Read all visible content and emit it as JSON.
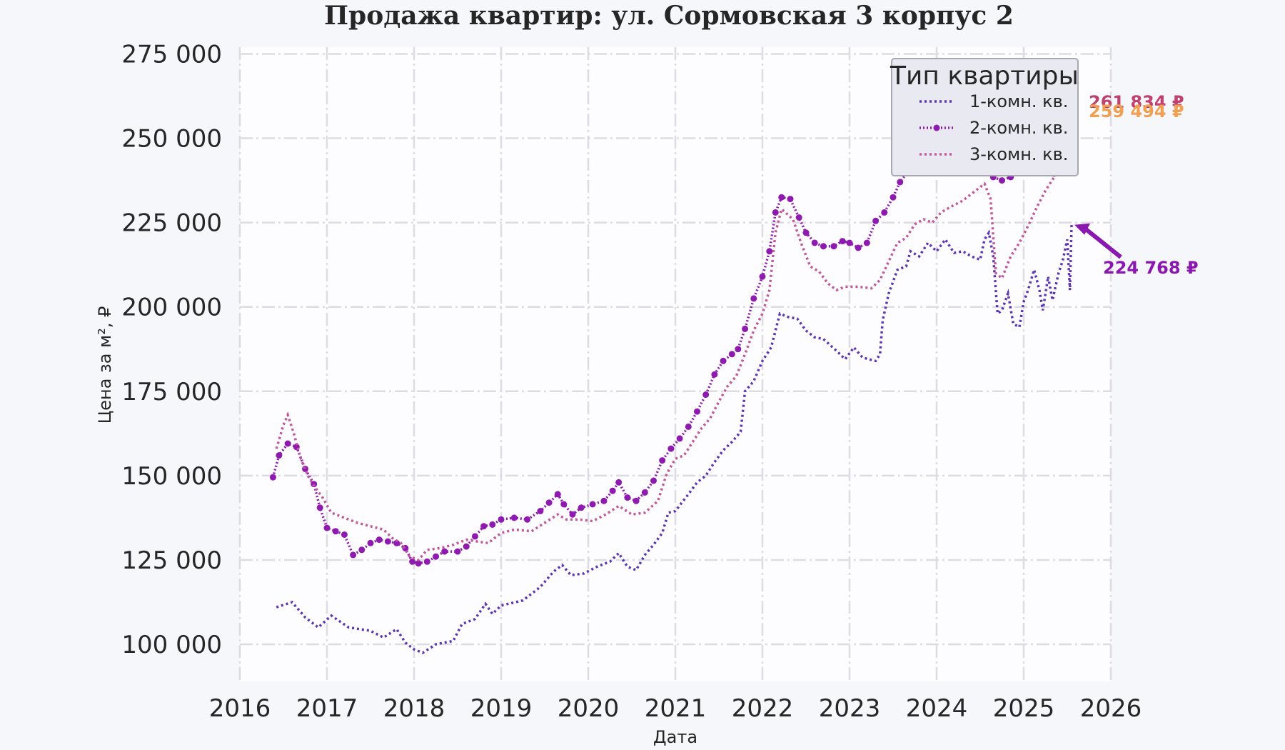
{
  "chart_data": {
    "type": "line",
    "title": "Продажа квартир: ул. Сормовская 3 корпус 2",
    "xlabel": "Дата",
    "ylabel": "Цена за м², ₽",
    "xlim": [
      2016.0,
      2026.0
    ],
    "ylim": [
      89000,
      277000
    ],
    "x_ticks": [
      "2016",
      "2017",
      "2018",
      "2019",
      "2020",
      "2021",
      "2022",
      "2023",
      "2024",
      "2025",
      "2026"
    ],
    "y_ticks": [
      {
        "value": 100000,
        "label": "100 000"
      },
      {
        "value": 125000,
        "label": "125 000"
      },
      {
        "value": 150000,
        "label": "150 000"
      },
      {
        "value": 175000,
        "label": "175 000"
      },
      {
        "value": 200000,
        "label": "200 000"
      },
      {
        "value": 225000,
        "label": "225 000"
      },
      {
        "value": 250000,
        "label": "250 000"
      },
      {
        "value": 275000,
        "label": "275 000"
      }
    ],
    "grid": true,
    "legend": {
      "title": "Тип квартиры",
      "position": "top-right"
    },
    "series": [
      {
        "name": "1-комн. кв.",
        "color": "#5e35b1",
        "style": "dotted",
        "points": [
          [
            2016.42,
            111000
          ],
          [
            2016.6,
            112500
          ],
          [
            2016.75,
            108000
          ],
          [
            2016.9,
            105000
          ],
          [
            2017.05,
            108500
          ],
          [
            2017.25,
            105000
          ],
          [
            2017.5,
            104000
          ],
          [
            2017.65,
            102000
          ],
          [
            2017.8,
            104500
          ],
          [
            2017.9,
            100500
          ],
          [
            2018.0,
            98500
          ],
          [
            2018.1,
            97500
          ],
          [
            2018.25,
            100000
          ],
          [
            2018.45,
            101000
          ],
          [
            2018.55,
            106000
          ],
          [
            2018.7,
            107500
          ],
          [
            2018.82,
            112000
          ],
          [
            2018.9,
            109000
          ],
          [
            2019.0,
            111500
          ],
          [
            2019.25,
            113000
          ],
          [
            2019.45,
            117000
          ],
          [
            2019.6,
            121500
          ],
          [
            2019.7,
            123500
          ],
          [
            2019.8,
            120500
          ],
          [
            2019.95,
            121000
          ],
          [
            2020.1,
            123000
          ],
          [
            2020.25,
            124500
          ],
          [
            2020.35,
            127000
          ],
          [
            2020.45,
            123000
          ],
          [
            2020.55,
            122000
          ],
          [
            2020.65,
            126500
          ],
          [
            2020.75,
            129500
          ],
          [
            2020.85,
            133000
          ],
          [
            2020.92,
            139000
          ],
          [
            2021.0,
            139500
          ],
          [
            2021.15,
            144500
          ],
          [
            2021.25,
            148000
          ],
          [
            2021.35,
            150000
          ],
          [
            2021.45,
            154000
          ],
          [
            2021.55,
            157500
          ],
          [
            2021.65,
            160000
          ],
          [
            2021.75,
            163000
          ],
          [
            2021.8,
            175000
          ],
          [
            2021.9,
            178000
          ],
          [
            2022.0,
            184000
          ],
          [
            2022.1,
            188000
          ],
          [
            2022.2,
            198000
          ],
          [
            2022.3,
            197000
          ],
          [
            2022.4,
            196500
          ],
          [
            2022.5,
            193000
          ],
          [
            2022.6,
            191000
          ],
          [
            2022.7,
            190500
          ],
          [
            2022.85,
            187000
          ],
          [
            2022.95,
            184500
          ],
          [
            2023.05,
            188000
          ],
          [
            2023.15,
            185000
          ],
          [
            2023.3,
            184000
          ],
          [
            2023.35,
            186000
          ],
          [
            2023.38,
            196000
          ],
          [
            2023.45,
            204000
          ],
          [
            2023.55,
            211000
          ],
          [
            2023.65,
            212000
          ],
          [
            2023.7,
            216500
          ],
          [
            2023.8,
            215000
          ],
          [
            2023.9,
            219000
          ],
          [
            2024.0,
            216500
          ],
          [
            2024.1,
            220000
          ],
          [
            2024.2,
            216000
          ],
          [
            2024.3,
            216500
          ],
          [
            2024.4,
            215000
          ],
          [
            2024.5,
            214000
          ],
          [
            2024.55,
            220000
          ],
          [
            2024.6,
            222000
          ],
          [
            2024.65,
            215000
          ],
          [
            2024.7,
            198000
          ],
          [
            2024.75,
            199000
          ],
          [
            2024.82,
            204000
          ],
          [
            2024.88,
            195000
          ],
          [
            2024.95,
            194000
          ],
          [
            2025.0,
            201500
          ],
          [
            2025.05,
            205000
          ],
          [
            2025.12,
            211000
          ],
          [
            2025.18,
            205000
          ],
          [
            2025.22,
            199000
          ],
          [
            2025.28,
            209000
          ],
          [
            2025.33,
            202000
          ],
          [
            2025.4,
            210000
          ],
          [
            2025.45,
            214000
          ],
          [
            2025.5,
            220000
          ],
          [
            2025.53,
            205000
          ],
          [
            2025.55,
            224768
          ]
        ]
      },
      {
        "name": "2-комн. кв.",
        "color": "#8e1ab0",
        "style": "dot-markers",
        "points": [
          [
            2016.38,
            149500
          ],
          [
            2016.45,
            156000
          ],
          [
            2016.55,
            159500
          ],
          [
            2016.65,
            158500
          ],
          [
            2016.75,
            152000
          ],
          [
            2016.85,
            147500
          ],
          [
            2016.92,
            140500
          ],
          [
            2017.0,
            134500
          ],
          [
            2017.1,
            133500
          ],
          [
            2017.2,
            132500
          ],
          [
            2017.3,
            126500
          ],
          [
            2017.4,
            128000
          ],
          [
            2017.5,
            130000
          ],
          [
            2017.6,
            131000
          ],
          [
            2017.7,
            130500
          ],
          [
            2017.8,
            130000
          ],
          [
            2017.9,
            128500
          ],
          [
            2017.98,
            124500
          ],
          [
            2018.05,
            124000
          ],
          [
            2018.15,
            124500
          ],
          [
            2018.25,
            126000
          ],
          [
            2018.35,
            127500
          ],
          [
            2018.5,
            127500
          ],
          [
            2018.6,
            129000
          ],
          [
            2018.7,
            132000
          ],
          [
            2018.8,
            135000
          ],
          [
            2018.9,
            135500
          ],
          [
            2019.0,
            137000
          ],
          [
            2019.15,
            137500
          ],
          [
            2019.3,
            137000
          ],
          [
            2019.45,
            139500
          ],
          [
            2019.55,
            142000
          ],
          [
            2019.65,
            144500
          ],
          [
            2019.72,
            141500
          ],
          [
            2019.82,
            138500
          ],
          [
            2019.92,
            140500
          ],
          [
            2020.05,
            141500
          ],
          [
            2020.18,
            142500
          ],
          [
            2020.28,
            145500
          ],
          [
            2020.35,
            148000
          ],
          [
            2020.45,
            143500
          ],
          [
            2020.55,
            142500
          ],
          [
            2020.65,
            145000
          ],
          [
            2020.75,
            148500
          ],
          [
            2020.85,
            154500
          ],
          [
            2020.95,
            158000
          ],
          [
            2021.05,
            161000
          ],
          [
            2021.15,
            164500
          ],
          [
            2021.25,
            169000
          ],
          [
            2021.35,
            174000
          ],
          [
            2021.45,
            180000
          ],
          [
            2021.55,
            184000
          ],
          [
            2021.65,
            186000
          ],
          [
            2021.72,
            187500
          ],
          [
            2021.8,
            193500
          ],
          [
            2021.9,
            202500
          ],
          [
            2022.0,
            209000
          ],
          [
            2022.08,
            216500
          ],
          [
            2022.15,
            228000
          ],
          [
            2022.22,
            232500
          ],
          [
            2022.32,
            232000
          ],
          [
            2022.42,
            226500
          ],
          [
            2022.5,
            222000
          ],
          [
            2022.6,
            219000
          ],
          [
            2022.7,
            218000
          ],
          [
            2022.82,
            218000
          ],
          [
            2022.92,
            219500
          ],
          [
            2023.0,
            219000
          ],
          [
            2023.1,
            217500
          ],
          [
            2023.2,
            219000
          ],
          [
            2023.3,
            225500
          ],
          [
            2023.4,
            228000
          ],
          [
            2023.5,
            232500
          ],
          [
            2023.58,
            237000
          ],
          [
            2023.68,
            240500
          ],
          [
            2023.8,
            242500
          ],
          [
            2023.92,
            245000
          ],
          [
            2024.05,
            244500
          ],
          [
            2024.15,
            246500
          ],
          [
            2024.25,
            244000
          ],
          [
            2024.35,
            242000
          ],
          [
            2024.45,
            244000
          ],
          [
            2024.55,
            245000
          ],
          [
            2024.65,
            238500
          ],
          [
            2024.75,
            237500
          ],
          [
            2024.85,
            238500
          ],
          [
            2024.95,
            240000
          ],
          [
            2025.05,
            243000
          ],
          [
            2025.15,
            244500
          ],
          [
            2025.25,
            242000
          ],
          [
            2025.35,
            239500
          ],
          [
            2025.45,
            242000
          ],
          [
            2025.52,
            250000
          ],
          [
            2025.55,
            261834
          ]
        ]
      },
      {
        "name": "3-комн. кв.",
        "color": "#c0589e",
        "style": "dotted",
        "points": [
          [
            2016.42,
            158000
          ],
          [
            2016.5,
            165000
          ],
          [
            2016.55,
            168000
          ],
          [
            2016.62,
            162500
          ],
          [
            2016.7,
            155000
          ],
          [
            2016.78,
            150000
          ],
          [
            2016.85,
            147000
          ],
          [
            2016.95,
            143500
          ],
          [
            2017.05,
            139000
          ],
          [
            2017.2,
            137500
          ],
          [
            2017.35,
            136000
          ],
          [
            2017.5,
            135000
          ],
          [
            2017.65,
            134000
          ],
          [
            2017.75,
            131500
          ],
          [
            2017.85,
            130000
          ],
          [
            2017.95,
            126000
          ],
          [
            2018.05,
            125000
          ],
          [
            2018.15,
            128000
          ],
          [
            2018.3,
            128500
          ],
          [
            2018.45,
            129500
          ],
          [
            2018.6,
            131000
          ],
          [
            2018.72,
            130500
          ],
          [
            2018.85,
            130000
          ],
          [
            2019.0,
            133000
          ],
          [
            2019.15,
            134000
          ],
          [
            2019.35,
            133500
          ],
          [
            2019.5,
            136000
          ],
          [
            2019.65,
            138500
          ],
          [
            2019.75,
            137000
          ],
          [
            2019.9,
            137000
          ],
          [
            2020.05,
            136500
          ],
          [
            2020.2,
            138500
          ],
          [
            2020.35,
            141000
          ],
          [
            2020.5,
            138500
          ],
          [
            2020.65,
            139000
          ],
          [
            2020.8,
            142500
          ],
          [
            2020.9,
            150500
          ],
          [
            2021.0,
            155000
          ],
          [
            2021.1,
            156000
          ],
          [
            2021.2,
            160000
          ],
          [
            2021.3,
            164000
          ],
          [
            2021.4,
            167000
          ],
          [
            2021.5,
            172000
          ],
          [
            2021.6,
            176500
          ],
          [
            2021.7,
            179500
          ],
          [
            2021.8,
            186000
          ],
          [
            2021.9,
            193000
          ],
          [
            2022.0,
            198000
          ],
          [
            2022.08,
            205000
          ],
          [
            2022.15,
            222000
          ],
          [
            2022.22,
            229000
          ],
          [
            2022.35,
            226000
          ],
          [
            2022.45,
            218500
          ],
          [
            2022.55,
            212000
          ],
          [
            2022.65,
            210500
          ],
          [
            2022.75,
            207000
          ],
          [
            2022.85,
            205000
          ],
          [
            2022.95,
            206000
          ],
          [
            2023.1,
            206000
          ],
          [
            2023.25,
            205500
          ],
          [
            2023.35,
            208000
          ],
          [
            2023.45,
            213500
          ],
          [
            2023.55,
            219000
          ],
          [
            2023.65,
            220500
          ],
          [
            2023.75,
            224500
          ],
          [
            2023.85,
            226000
          ],
          [
            2023.95,
            225000
          ],
          [
            2024.05,
            228000
          ],
          [
            2024.15,
            229500
          ],
          [
            2024.3,
            231500
          ],
          [
            2024.45,
            234500
          ],
          [
            2024.55,
            236500
          ],
          [
            2024.62,
            232000
          ],
          [
            2024.68,
            210000
          ],
          [
            2024.75,
            208500
          ],
          [
            2024.85,
            215000
          ],
          [
            2024.95,
            219000
          ],
          [
            2025.05,
            224000
          ],
          [
            2025.15,
            229500
          ],
          [
            2025.25,
            234500
          ],
          [
            2025.35,
            238500
          ],
          [
            2025.45,
            243000
          ],
          [
            2025.5,
            240000
          ],
          [
            2025.53,
            251000
          ],
          [
            2025.55,
            259494
          ]
        ]
      }
    ],
    "annotations": [
      {
        "text": "261 834 ₽",
        "color": "#c0406e",
        "anchor": [
          2025.55,
          261834
        ]
      },
      {
        "text": "259 494 ₽",
        "color": "#f0a050",
        "anchor": [
          2025.55,
          259494
        ]
      },
      {
        "text": "224 768 ₽",
        "color": "#8a18b0",
        "anchor": [
          2025.55,
          224768
        ]
      }
    ]
  }
}
